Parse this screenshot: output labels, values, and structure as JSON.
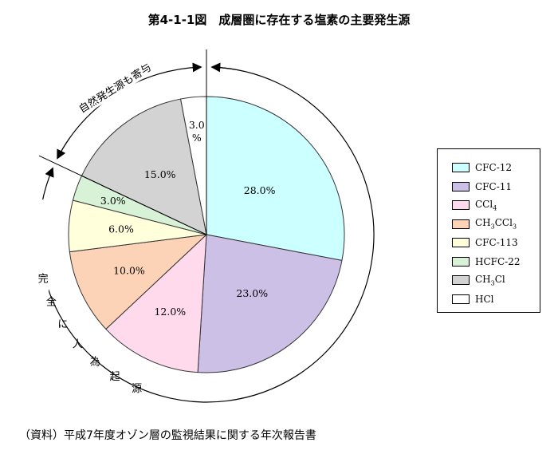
{
  "title": "第4-1-1図　成層圏に存在する塩素の主要発生源",
  "source_note": "（資料）平成7年度オゾン層の監視結果に関する年次報告書",
  "annotations": {
    "natural": "自然発生源も寄与",
    "human": "完全に人為起源"
  },
  "chart_data": {
    "type": "pie",
    "slices": [
      {
        "label": "CFC-12",
        "label_main": "CFC-12",
        "label_sub": "",
        "label_tail": "",
        "value": 28.0,
        "display": "28.0%",
        "color": "#ccffff"
      },
      {
        "label": "CFC-11",
        "label_main": "CFC-11",
        "label_sub": "",
        "label_tail": "",
        "value": 23.0,
        "display": "23.0%",
        "color": "#ccc0e6"
      },
      {
        "label": "CCl4",
        "label_main": "CCl",
        "label_sub": "4",
        "label_tail": "",
        "value": 12.0,
        "display": "12.0%",
        "color": "#ffd9ec"
      },
      {
        "label": "CH3CCl3",
        "label_main": "CH",
        "label_sub": "3",
        "label_tail": "CCl",
        "label_sub2": "3",
        "value": 10.0,
        "display": "10.0%",
        "color": "#fcd3b6"
      },
      {
        "label": "CFC-113",
        "label_main": "CFC-113",
        "label_sub": "",
        "label_tail": "",
        "value": 6.0,
        "display": "6.0%",
        "color": "#ffffdc"
      },
      {
        "label": "HCFC-22",
        "label_main": "HCFC-22",
        "label_sub": "",
        "label_tail": "",
        "value": 3.0,
        "display": "3.0%",
        "color": "#d8f2d8"
      },
      {
        "label": "CH3Cl",
        "label_main": "CH",
        "label_sub": "3",
        "label_tail": "Cl",
        "value": 15.0,
        "display": "15.0%",
        "color": "#d3d3d3"
      },
      {
        "label": "HCl",
        "label_main": "HCl",
        "label_sub": "",
        "label_tail": "",
        "value": 3.0,
        "display_line1": "3.0",
        "display_line2": "%",
        "color": "#ffffff"
      }
    ],
    "start": "12 o'clock",
    "direction": "clockwise"
  }
}
